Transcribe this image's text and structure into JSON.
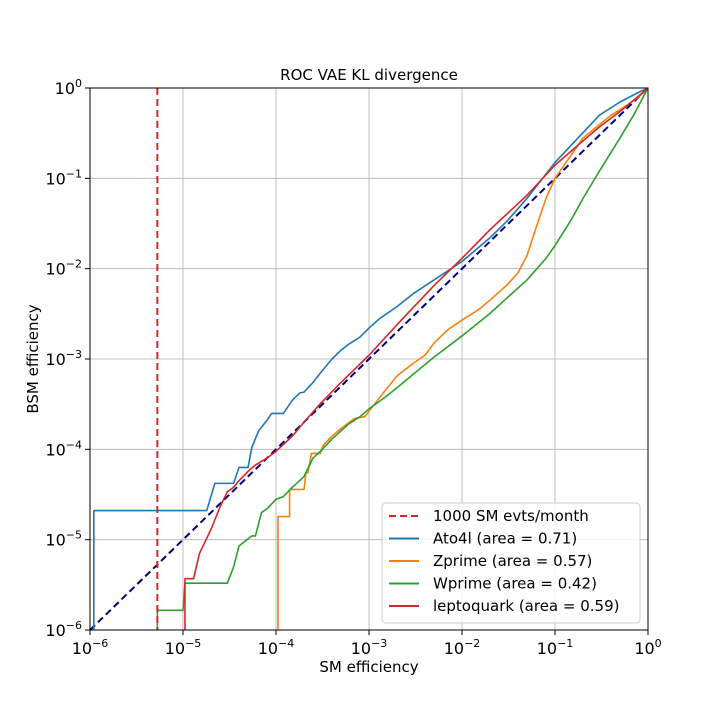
{
  "chart_data": {
    "type": "line",
    "title": "ROC VAE KL divergence",
    "xlabel": "SM efficiency",
    "ylabel": "BSM efficiency",
    "xscale": "log",
    "yscale": "log",
    "xlim": [
      1e-06,
      1
    ],
    "ylim": [
      1e-06,
      1
    ],
    "grid": true,
    "legend_loc": "lower-right",
    "x_ticks": [
      {
        "value": 1e-06,
        "base": "10",
        "exp": "−6"
      },
      {
        "value": 1e-05,
        "base": "10",
        "exp": "−5"
      },
      {
        "value": 0.0001,
        "base": "10",
        "exp": "−4"
      },
      {
        "value": 0.001,
        "base": "10",
        "exp": "−3"
      },
      {
        "value": 0.01,
        "base": "10",
        "exp": "−2"
      },
      {
        "value": 0.1,
        "base": "10",
        "exp": "−1"
      },
      {
        "value": 1,
        "base": "10",
        "exp": "0"
      }
    ],
    "y_ticks": [
      {
        "value": 1e-06,
        "base": "10",
        "exp": "−6"
      },
      {
        "value": 1e-05,
        "base": "10",
        "exp": "−5"
      },
      {
        "value": 0.0001,
        "base": "10",
        "exp": "−4"
      },
      {
        "value": 0.001,
        "base": "10",
        "exp": "−3"
      },
      {
        "value": 0.01,
        "base": "10",
        "exp": "−2"
      },
      {
        "value": 0.1,
        "base": "10",
        "exp": "−1"
      },
      {
        "value": 1,
        "base": "10",
        "exp": "0"
      }
    ],
    "vline": {
      "name": "1000 SM evts/month",
      "x": 5.3e-06,
      "color": "#d62728"
    },
    "diagonal": {
      "color": "#000080"
    },
    "series": [
      {
        "name": "Ato4l (area = 0.71)",
        "color": "#1f77b4",
        "points": [
          [
            1.1e-06,
            1e-06
          ],
          [
            1.1e-06,
            2.1e-05
          ],
          [
            1.8e-05,
            2.1e-05
          ],
          [
            2.2e-05,
            4.2e-05
          ],
          [
            3.5e-05,
            4.2e-05
          ],
          [
            4e-05,
            6.3e-05
          ],
          [
            5e-05,
            6.3e-05
          ],
          [
            5.5e-05,
            0.000105
          ],
          [
            6.5e-05,
            0.00016
          ],
          [
            8e-05,
            0.00021
          ],
          [
            9e-05,
            0.00025
          ],
          [
            0.00012,
            0.00025
          ],
          [
            0.00015,
            0.00035
          ],
          [
            0.00018,
            0.00042
          ],
          [
            0.0002,
            0.00043
          ],
          [
            0.00025,
            0.00055
          ],
          [
            0.0003,
            0.0007
          ],
          [
            0.0004,
            0.001
          ],
          [
            0.0005,
            0.00125
          ],
          [
            0.0006,
            0.00145
          ],
          [
            0.0008,
            0.00175
          ],
          [
            0.001,
            0.0022
          ],
          [
            0.0013,
            0.0028
          ],
          [
            0.002,
            0.0038
          ],
          [
            0.003,
            0.0053
          ],
          [
            0.005,
            0.0075
          ],
          [
            0.01,
            0.012
          ],
          [
            0.02,
            0.022
          ],
          [
            0.03,
            0.033
          ],
          [
            0.05,
            0.06
          ],
          [
            0.1,
            0.15
          ],
          [
            0.2,
            0.32
          ],
          [
            0.3,
            0.5
          ],
          [
            0.5,
            0.7
          ],
          [
            0.8,
            0.9
          ],
          [
            1,
            1
          ]
        ]
      },
      {
        "name": "Zprime (area = 0.57)",
        "color": "#ff7f0e",
        "points": [
          [
            0.000105,
            1e-06
          ],
          [
            0.000105,
            1.8e-05
          ],
          [
            0.00014,
            1.8e-05
          ],
          [
            0.00014,
            3.6e-05
          ],
          [
            0.0002,
            3.6e-05
          ],
          [
            0.00021,
            5.5e-05
          ],
          [
            0.00022,
            5.5e-05
          ],
          [
            0.00024,
            9e-05
          ],
          [
            0.0003,
            9e-05
          ],
          [
            0.00032,
            0.00011
          ],
          [
            0.0004,
            0.00014
          ],
          [
            0.0005,
            0.00017
          ],
          [
            0.0007,
            0.00022
          ],
          [
            0.0009,
            0.00023
          ],
          [
            0.0011,
            0.0003
          ],
          [
            0.0015,
            0.00045
          ],
          [
            0.002,
            0.00065
          ],
          [
            0.003,
            0.0009
          ],
          [
            0.004,
            0.0011
          ],
          [
            0.005,
            0.0015
          ],
          [
            0.007,
            0.0021
          ],
          [
            0.01,
            0.0027
          ],
          [
            0.015,
            0.0035
          ],
          [
            0.02,
            0.0045
          ],
          [
            0.03,
            0.0065
          ],
          [
            0.04,
            0.009
          ],
          [
            0.05,
            0.014
          ],
          [
            0.06,
            0.025
          ],
          [
            0.08,
            0.06
          ],
          [
            0.1,
            0.1
          ],
          [
            0.2,
            0.28
          ],
          [
            0.4,
            0.5
          ],
          [
            0.6,
            0.65
          ],
          [
            0.8,
            0.8
          ],
          [
            1,
            1
          ]
        ]
      },
      {
        "name": "Wprime (area = 0.42)",
        "color": "#2ca02c",
        "points": [
          [
            5.3e-06,
            1e-06
          ],
          [
            5.3e-06,
            1.65e-06
          ],
          [
            1e-05,
            1.65e-06
          ],
          [
            1.05e-05,
            3.3e-06
          ],
          [
            3e-05,
            3.3e-06
          ],
          [
            3.5e-05,
            5e-06
          ],
          [
            4e-05,
            8.5e-06
          ],
          [
            5.5e-05,
            1.1e-05
          ],
          [
            6e-05,
            1.1e-05
          ],
          [
            7e-05,
            2e-05
          ],
          [
            8e-05,
            2.2e-05
          ],
          [
            0.0001,
            2.8e-05
          ],
          [
            0.00012,
            3e-05
          ],
          [
            0.00015,
            3.8e-05
          ],
          [
            0.0002,
            5e-05
          ],
          [
            0.00025,
            8e-05
          ],
          [
            0.0003,
            9.5e-05
          ],
          [
            0.0004,
            0.00013
          ],
          [
            0.0006,
            0.00019
          ],
          [
            0.0008,
            0.00023
          ],
          [
            0.001,
            0.00028
          ],
          [
            0.0015,
            0.00038
          ],
          [
            0.002,
            0.00048
          ],
          [
            0.003,
            0.00068
          ],
          [
            0.005,
            0.00105
          ],
          [
            0.01,
            0.0018
          ],
          [
            0.02,
            0.0032
          ],
          [
            0.05,
            0.0075
          ],
          [
            0.08,
            0.013
          ],
          [
            0.1,
            0.018
          ],
          [
            0.15,
            0.035
          ],
          [
            0.2,
            0.06
          ],
          [
            0.3,
            0.12
          ],
          [
            0.5,
            0.28
          ],
          [
            0.7,
            0.5
          ],
          [
            1,
            1
          ]
        ]
      },
      {
        "name": "leptoquark (area = 0.59)",
        "color": "#d62728",
        "points": [
          [
            1.05e-05,
            1e-06
          ],
          [
            1.05e-05,
            3.7e-06
          ],
          [
            1.3e-05,
            3.7e-06
          ],
          [
            1.5e-05,
            7e-06
          ],
          [
            2e-05,
            1.3e-05
          ],
          [
            2.5e-05,
            2.3e-05
          ],
          [
            3e-05,
            3.4e-05
          ],
          [
            3.5e-05,
            3.8e-05
          ],
          [
            4e-05,
            4.5e-05
          ],
          [
            5e-05,
            5.7e-05
          ],
          [
            6e-05,
            6.7e-05
          ],
          [
            8e-05,
            8e-05
          ],
          [
            0.0001,
            9.5e-05
          ],
          [
            0.00015,
            0.00014
          ],
          [
            0.0002,
            0.0002
          ],
          [
            0.0003,
            0.00032
          ],
          [
            0.0005,
            0.00055
          ],
          [
            0.001,
            0.0011
          ],
          [
            0.002,
            0.0024
          ],
          [
            0.005,
            0.0065
          ],
          [
            0.01,
            0.013
          ],
          [
            0.02,
            0.027
          ],
          [
            0.05,
            0.065
          ],
          [
            0.1,
            0.14
          ],
          [
            0.2,
            0.26
          ],
          [
            0.3,
            0.37
          ],
          [
            0.5,
            0.55
          ],
          [
            0.8,
            0.82
          ],
          [
            1,
            1
          ]
        ]
      }
    ],
    "legend": [
      {
        "key": "vline",
        "label": "1000 SM evts/month"
      },
      {
        "key": "s0",
        "label": "Ato4l (area = 0.71)"
      },
      {
        "key": "s1",
        "label": "Zprime (area = 0.57)"
      },
      {
        "key": "s2",
        "label": "Wprime (area = 0.42)"
      },
      {
        "key": "s3",
        "label": "leptoquark (area = 0.59)"
      }
    ]
  }
}
